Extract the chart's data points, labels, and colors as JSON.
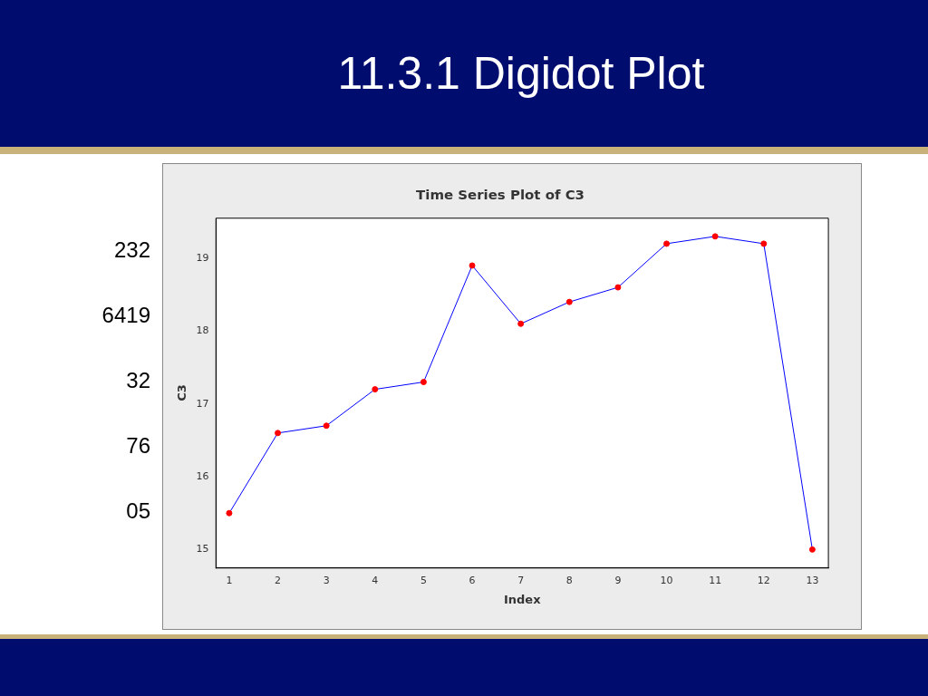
{
  "chart_data": {
    "type": "line",
    "title": "11.3.1 Digidot Plot",
    "subtitle": "Time Series Plot of C3",
    "xlabel": "Index",
    "ylabel": "C3",
    "x": [
      1,
      2,
      3,
      4,
      5,
      6,
      7,
      8,
      9,
      10,
      11,
      12,
      13
    ],
    "series": [
      {
        "color": "#0000ff",
        "colors": [
          "#ff0000",
          "#ff0000",
          "#ff0000",
          "#ff0000",
          "#ff0000",
          "#ff0000",
          "#ff0000",
          "#ff0000",
          "#ff0000",
          "#ff0000",
          "#ff0000",
          "#ff0000",
          "#ff0000"
        ],
        "values": [
          15.5,
          16.6,
          16.7,
          17.2,
          17.3,
          18.9,
          18.1,
          18.4,
          18.6,
          19.2,
          19.3,
          19.2,
          15.0
        ]
      }
    ],
    "xlim": [
      0.73,
      13.33
    ],
    "xticks": [
      1,
      2,
      3,
      4,
      5,
      6,
      7,
      8,
      9,
      10,
      11,
      12,
      13
    ],
    "ylim": [
      14.75,
      19.55
    ],
    "yticks": [
      15,
      16,
      17,
      18,
      19
    ],
    "grid": false,
    "legend": false,
    "marker": "circle",
    "line_style": "solid",
    "annotations": [
      "232",
      "6419",
      "32",
      "76",
      "05"
    ]
  }
}
